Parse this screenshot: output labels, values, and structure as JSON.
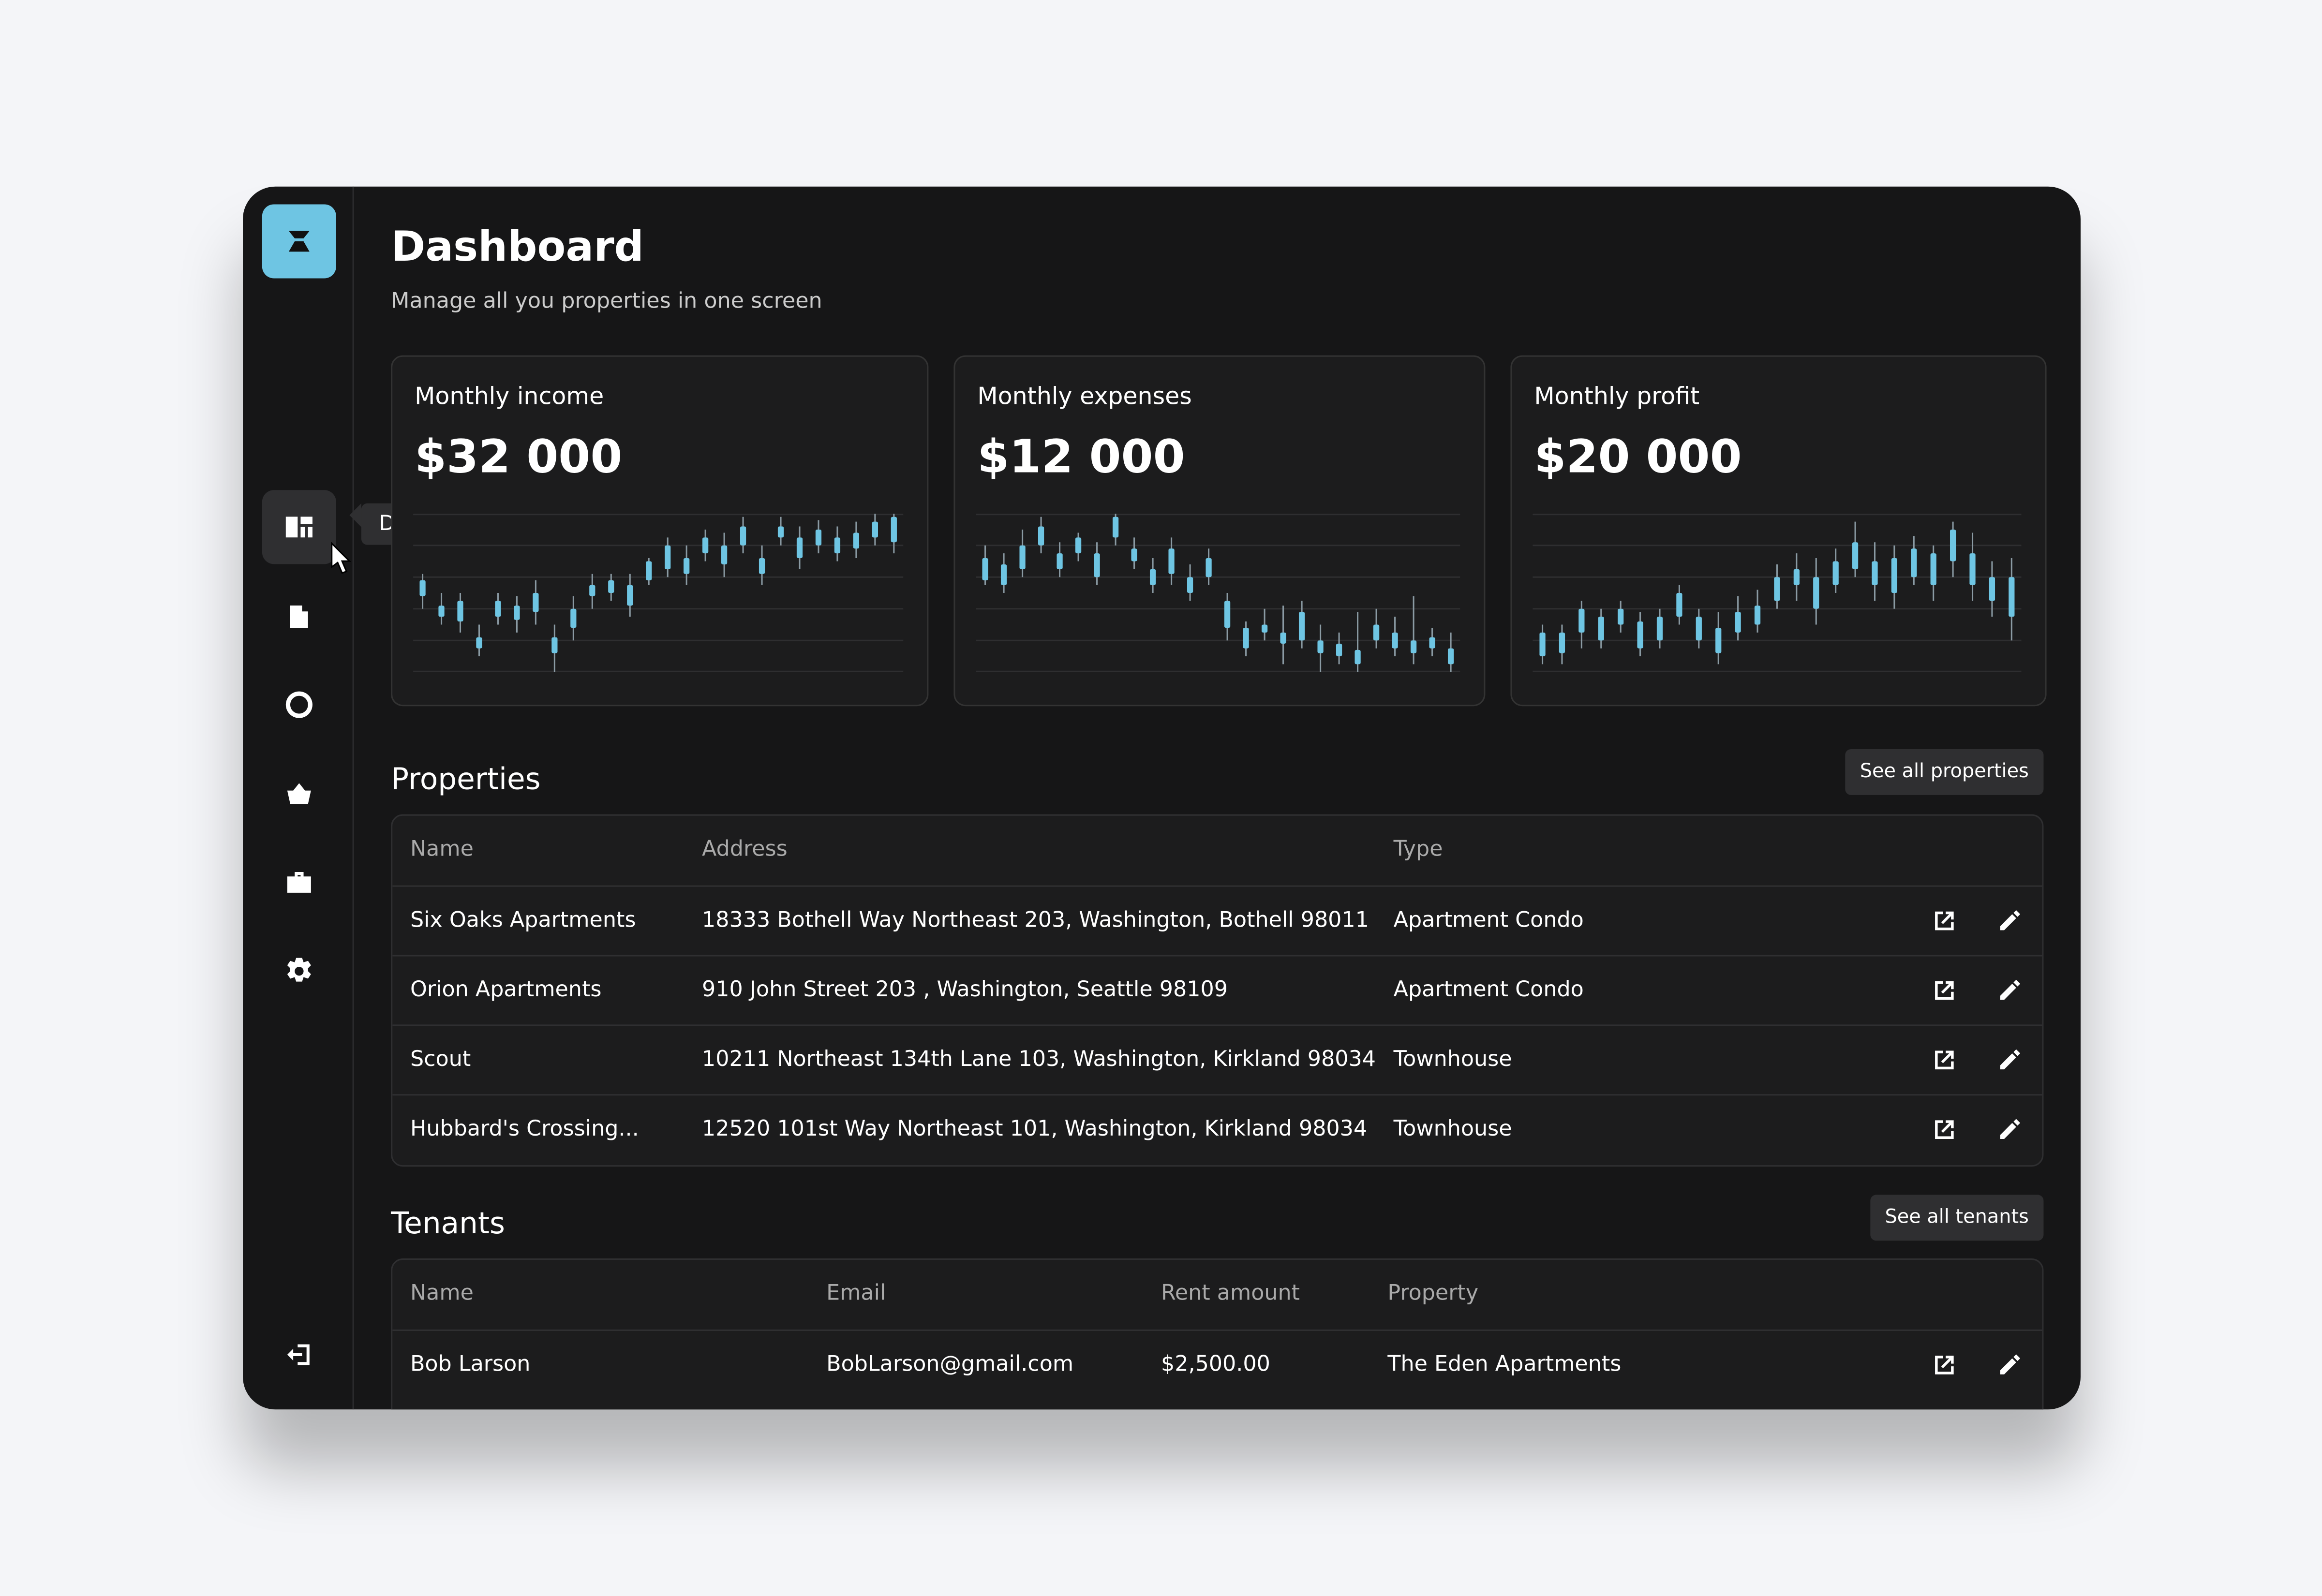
{
  "sidebar": {
    "tooltip": "Dashboard"
  },
  "header": {
    "title": "Dashboard",
    "subtitle": "Manage all you properties in one screen"
  },
  "cards": [
    {
      "label": "Monthly income",
      "value": "$32 000",
      "chart_data": {
        "type": "candlestick",
        "ylim": [
          0,
          100
        ],
        "yticks": [
          0,
          20,
          40,
          60,
          80,
          100
        ],
        "grid": true,
        "color": "#6ec5e3",
        "candles": [
          [
            40,
            48,
            58,
            62
          ],
          [
            30,
            35,
            42,
            50
          ],
          [
            25,
            32,
            45,
            50
          ],
          [
            10,
            15,
            22,
            30
          ],
          [
            30,
            35,
            45,
            50
          ],
          [
            25,
            33,
            42,
            48
          ],
          [
            30,
            38,
            50,
            58
          ],
          [
            0,
            12,
            22,
            30
          ],
          [
            20,
            28,
            40,
            48
          ],
          [
            40,
            48,
            55,
            62
          ],
          [
            45,
            50,
            58,
            62
          ],
          [
            35,
            42,
            55,
            62
          ],
          [
            55,
            58,
            70,
            72
          ],
          [
            60,
            65,
            80,
            85
          ],
          [
            55,
            62,
            72,
            80
          ],
          [
            70,
            75,
            85,
            90
          ],
          [
            60,
            68,
            80,
            88
          ],
          [
            75,
            80,
            92,
            98
          ],
          [
            55,
            62,
            72,
            80
          ],
          [
            80,
            85,
            92,
            98
          ],
          [
            65,
            72,
            85,
            92
          ],
          [
            75,
            80,
            90,
            96
          ],
          [
            70,
            75,
            85,
            92
          ],
          [
            72,
            78,
            88,
            95
          ],
          [
            80,
            85,
            95,
            100
          ],
          [
            75,
            82,
            98,
            100
          ]
        ]
      }
    },
    {
      "label": "Monthly expenses",
      "value": "$12 000",
      "chart_data": {
        "type": "candlestick",
        "ylim": [
          0,
          100
        ],
        "yticks": [
          0,
          20,
          40,
          60,
          80,
          100
        ],
        "grid": true,
        "color": "#6ec5e3",
        "candles": [
          [
            55,
            58,
            72,
            80
          ],
          [
            50,
            55,
            68,
            75
          ],
          [
            60,
            65,
            80,
            90
          ],
          [
            75,
            80,
            92,
            98
          ],
          [
            60,
            65,
            75,
            82
          ],
          [
            70,
            75,
            85,
            88
          ],
          [
            55,
            60,
            75,
            82
          ],
          [
            80,
            85,
            98,
            100
          ],
          [
            65,
            70,
            78,
            85
          ],
          [
            50,
            55,
            65,
            72
          ],
          [
            55,
            62,
            78,
            85
          ],
          [
            45,
            50,
            60,
            68
          ],
          [
            55,
            60,
            72,
            78
          ],
          [
            20,
            28,
            45,
            50
          ],
          [
            10,
            15,
            28,
            32
          ],
          [
            20,
            25,
            30,
            40
          ],
          [
            5,
            18,
            25,
            42
          ],
          [
            15,
            20,
            38,
            45
          ],
          [
            0,
            12,
            20,
            30
          ],
          [
            5,
            10,
            18,
            25
          ],
          [
            0,
            5,
            14,
            38
          ],
          [
            15,
            20,
            30,
            40
          ],
          [
            10,
            15,
            25,
            35
          ],
          [
            5,
            12,
            20,
            48
          ],
          [
            10,
            15,
            22,
            28
          ],
          [
            0,
            5,
            15,
            25
          ]
        ]
      }
    },
    {
      "label": "Monthly profit",
      "value": "$20 000",
      "chart_data": {
        "type": "candlestick",
        "ylim": [
          0,
          100
        ],
        "yticks": [
          0,
          20,
          40,
          60,
          80,
          100
        ],
        "grid": true,
        "color": "#6ec5e3",
        "candles": [
          [
            5,
            10,
            25,
            30
          ],
          [
            5,
            12,
            25,
            30
          ],
          [
            15,
            25,
            40,
            45
          ],
          [
            15,
            20,
            35,
            40
          ],
          [
            25,
            30,
            40,
            45
          ],
          [
            10,
            15,
            32,
            38
          ],
          [
            15,
            20,
            35,
            40
          ],
          [
            30,
            35,
            50,
            55
          ],
          [
            15,
            20,
            35,
            40
          ],
          [
            5,
            12,
            28,
            38
          ],
          [
            20,
            25,
            38,
            48
          ],
          [
            25,
            30,
            42,
            52
          ],
          [
            40,
            45,
            60,
            68
          ],
          [
            45,
            55,
            65,
            75
          ],
          [
            30,
            40,
            60,
            72
          ],
          [
            50,
            55,
            70,
            78
          ],
          [
            60,
            65,
            82,
            95
          ],
          [
            45,
            55,
            70,
            82
          ],
          [
            40,
            50,
            72,
            80
          ],
          [
            55,
            60,
            78,
            86
          ],
          [
            45,
            55,
            75,
            80
          ],
          [
            60,
            70,
            90,
            95
          ],
          [
            45,
            55,
            75,
            88
          ],
          [
            35,
            45,
            60,
            70
          ],
          [
            20,
            35,
            60,
            72
          ]
        ]
      }
    }
  ],
  "properties": {
    "title": "Properties",
    "button": "See all properties",
    "columns": [
      "Name",
      "Address",
      "Type"
    ],
    "rows": [
      [
        "Six Oaks Apartments",
        "18333 Bothell Way Northeast 203, Washington, Bothell 98011",
        "Apartment Condo"
      ],
      [
        "Orion Apartments",
        "910 John Street 203 , Washington, Seattle 98109",
        "Apartment Condo"
      ],
      [
        "Scout",
        "10211 Northeast 134th Lane 103, Washington, Kirkland 98034",
        "Townhouse"
      ],
      [
        "Hubbard's Crossing...",
        "12520 101st Way Northeast 101, Washington, Kirkland 98034",
        "Townhouse"
      ]
    ]
  },
  "tenants": {
    "title": "Tenants",
    "button": "See all tenants",
    "columns": [
      "Name",
      "Email",
      "Rent amount",
      "Property"
    ],
    "rows": [
      [
        "Bob Larson",
        "BobLarson@gmail.com",
        "$2,500.00",
        "The Eden Apartments"
      ]
    ]
  }
}
